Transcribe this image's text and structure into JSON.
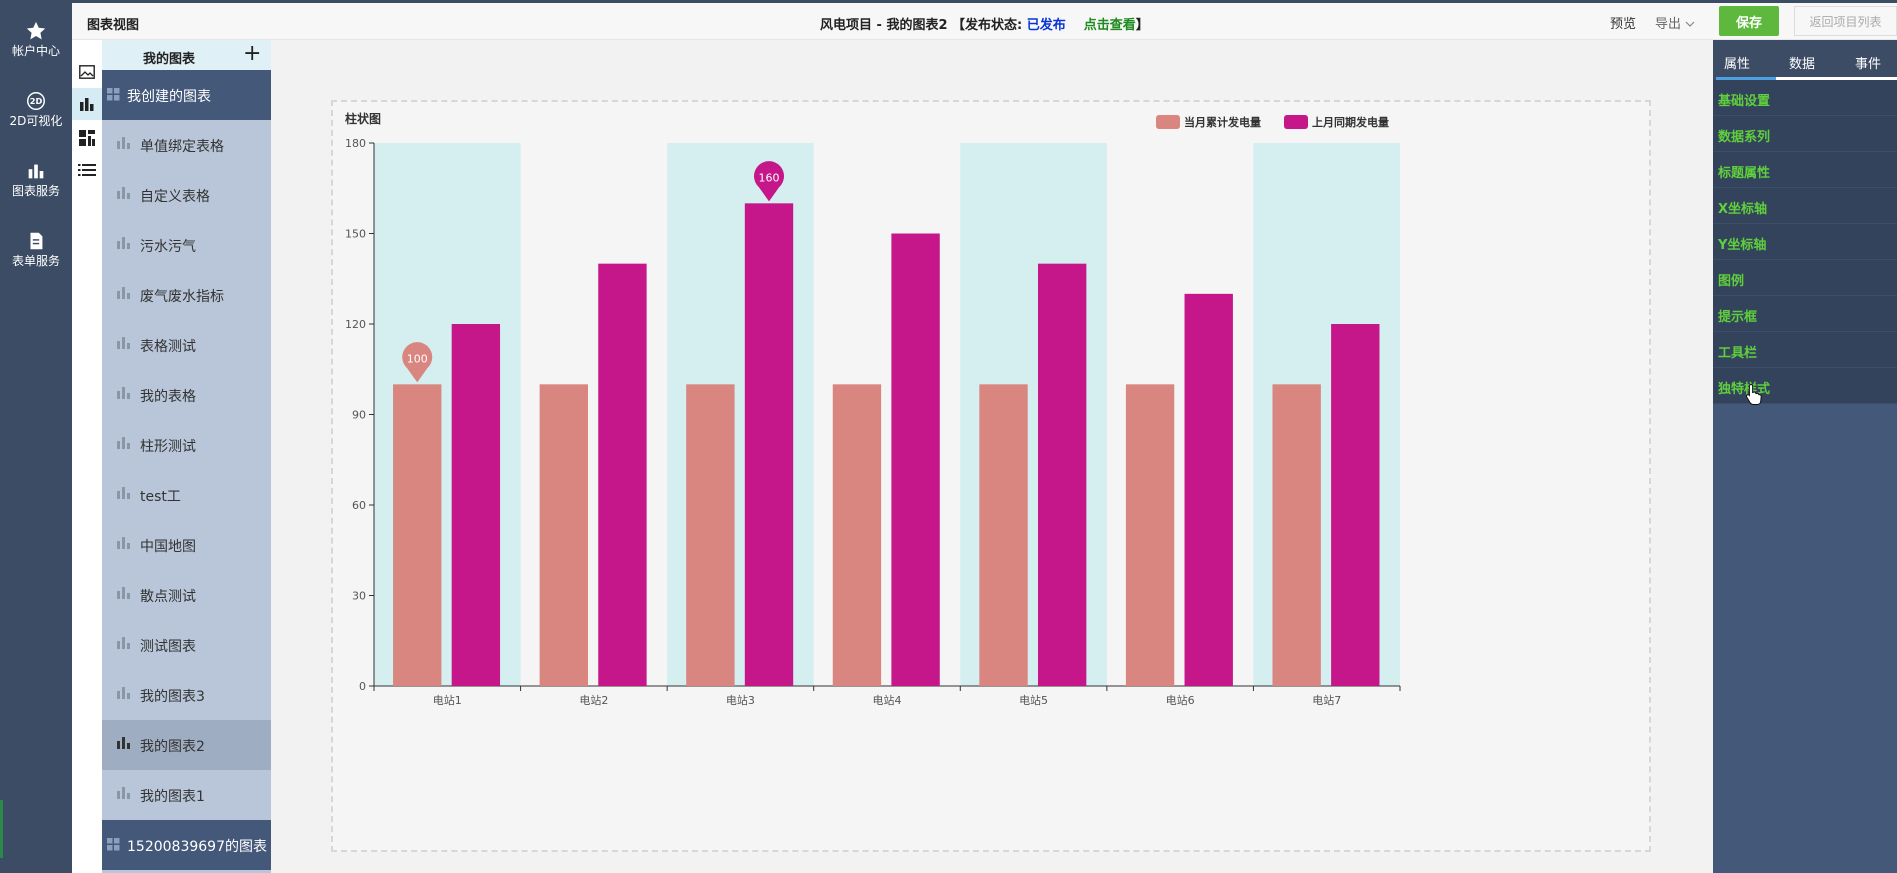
{
  "global_nav": [
    {
      "label": "帐户中心",
      "icon": "star-icon"
    },
    {
      "label": "2D可视化",
      "icon": "2d-icon"
    },
    {
      "label": "图表服务",
      "icon": "bar-chart-icon"
    },
    {
      "label": "表单服务",
      "icon": "form-icon"
    }
  ],
  "header": {
    "app_title": "图表视图",
    "project_title": "风电项目 - 我的图表2 【发布状态: ",
    "status": "已发布",
    "view_link": "点击查看",
    "suffix": "】",
    "preview": "预览",
    "export": "导出",
    "save": "保存",
    "back": "返回项目列表"
  },
  "chart_list": {
    "title": "我的图表",
    "add_icon": "plus-icon",
    "group_created": "我创建的图表",
    "items": [
      "单值绑定表格",
      "自定义表格",
      "污水污气",
      "废气废水指标",
      "表格测试",
      "我的表格",
      "柱形测试",
      "test工",
      "中国地图",
      "散点测试",
      "测试图表",
      "我的图表3",
      "我的图表2",
      "我的图表1"
    ],
    "selected": "我的图表2",
    "group_other": "15200839697的图表"
  },
  "properties": {
    "tabs": [
      "属性",
      "数据",
      "事件"
    ],
    "menu": [
      "基础设置",
      "数据系列",
      "标题属性",
      "X坐标轴",
      "Y坐标轴",
      "图例",
      "提示框",
      "工具栏",
      "独特样式"
    ]
  },
  "colors": {
    "series_current": "#d98580",
    "series_last": "#c5168a",
    "band": "#d5eff0",
    "nav_bg": "#3c4c64",
    "accent_green": "#5fb83e"
  },
  "chart_data": {
    "type": "bar",
    "title": "柱状图",
    "categories": [
      "电站1",
      "电站2",
      "电站3",
      "电站4",
      "电站5",
      "电站6",
      "电站7"
    ],
    "series": [
      {
        "name": "当月累计发电量",
        "values": [
          100,
          100,
          100,
          100,
          100,
          100,
          100
        ]
      },
      {
        "name": "上月同期发电量",
        "values": [
          120,
          140,
          160,
          150,
          140,
          130,
          120
        ]
      }
    ],
    "yticks": [
      0,
      30,
      60,
      90,
      120,
      150,
      180
    ],
    "ylim": [
      0,
      180
    ],
    "markpoints": [
      {
        "series": 0,
        "category": 0,
        "value": 100
      },
      {
        "series": 1,
        "category": 2,
        "value": 160
      }
    ],
    "legend": "top-right",
    "xlabel": "",
    "ylabel": ""
  }
}
